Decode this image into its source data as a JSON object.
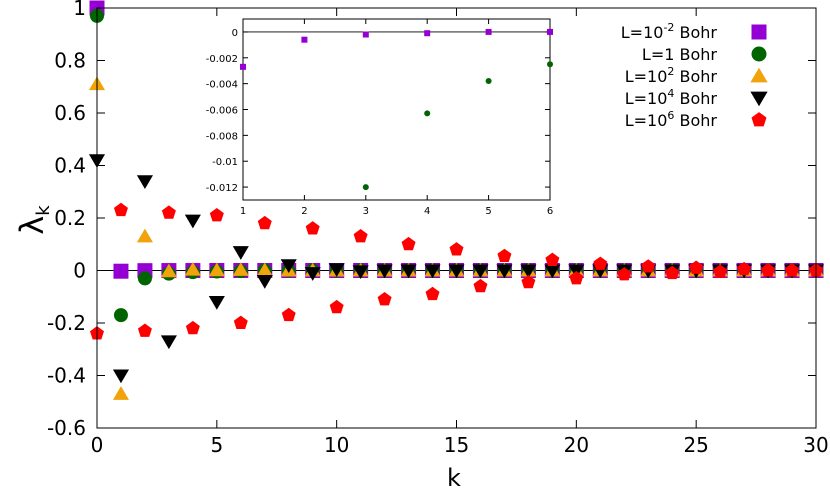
{
  "chart_data": [
    {
      "type": "scatter",
      "xlabel": "k",
      "ylabel": "λ",
      "ylabel_sub": "k",
      "xlim": [
        0,
        30
      ],
      "ylim": [
        -0.6,
        1
      ],
      "xticks": [
        0,
        5,
        10,
        15,
        20,
        25,
        30
      ],
      "yticks": [
        -0.6,
        -0.4,
        -0.2,
        0,
        0.2,
        0.4,
        0.6,
        0.8,
        1
      ],
      "ytick_labels": [
        "-0.6",
        "-0.4",
        "-0.2",
        "0",
        "0.2",
        "0.4",
        "0.6",
        "0.8",
        "1"
      ],
      "legend_position": "top-right",
      "series": [
        {
          "legend": {
            "base": "L=10",
            "exp": "-2",
            "unit": " Bohr"
          },
          "marker": "square",
          "color": "#9400d3",
          "x": [
            0,
            1,
            2,
            3,
            4,
            5,
            6,
            7,
            8,
            9,
            10,
            11,
            12,
            13,
            14,
            15,
            16,
            17,
            18,
            19,
            20,
            21,
            22,
            23,
            24,
            25,
            26,
            27,
            28,
            29,
            30
          ],
          "y": [
            1.0,
            -0.0027,
            -0.0006,
            -0.0002,
            -0.0001,
            0,
            0,
            0,
            0,
            0,
            0,
            0,
            0,
            0,
            0,
            0,
            0,
            0,
            0,
            0,
            0,
            0,
            0,
            0,
            0,
            0,
            0,
            0,
            0,
            0,
            0
          ]
        },
        {
          "legend": {
            "base": "L=1",
            "exp": "",
            "unit": " Bohr"
          },
          "marker": "circle",
          "color": "#006400",
          "x": [
            0,
            1,
            2,
            3,
            4,
            5,
            6,
            7,
            8,
            9,
            10,
            11,
            12,
            13,
            14,
            15,
            16,
            17,
            18,
            19,
            20,
            21,
            22,
            23,
            24,
            25,
            26,
            27,
            28,
            29,
            30
          ],
          "y": [
            0.97,
            -0.17,
            -0.03,
            -0.012,
            -0.0063,
            -0.0038,
            -0.0025,
            0,
            0,
            0,
            0,
            0,
            0,
            0,
            0,
            0,
            0,
            0,
            0,
            0,
            0,
            0,
            0,
            0,
            0,
            0,
            0,
            0,
            0,
            0,
            0
          ]
        },
        {
          "legend": {
            "base": "L=10",
            "exp": "2",
            "unit": " Bohr"
          },
          "marker": "triangle-up",
          "color": "#f0a30a",
          "x": [
            0,
            1,
            2,
            3,
            4,
            5,
            6,
            7,
            8,
            9,
            10,
            11,
            12,
            13,
            14,
            15,
            16,
            17,
            18,
            19,
            20,
            21,
            22,
            23,
            24,
            25,
            26,
            27,
            28,
            29,
            30
          ],
          "y": [
            0.71,
            -0.47,
            0.13,
            -0.003,
            0.003,
            0.001,
            0.002,
            0.001,
            0,
            0,
            0,
            0,
            0,
            0,
            0,
            0,
            0,
            0,
            0,
            0,
            0,
            0,
            0,
            0,
            0,
            0,
            0,
            0,
            0,
            0,
            0
          ]
        },
        {
          "legend": {
            "base": "L=10",
            "exp": "4",
            "unit": " Bohr"
          },
          "marker": "triangle-down",
          "color": "#000000",
          "x": [
            0,
            1,
            2,
            3,
            4,
            5,
            6,
            7,
            8,
            9,
            10,
            11,
            12,
            13,
            14,
            15,
            16,
            17,
            18,
            19,
            20,
            21,
            22,
            23,
            24,
            25,
            26,
            27,
            28,
            29,
            30
          ],
          "y": [
            0.42,
            -0.4,
            0.34,
            -0.27,
            0.19,
            -0.12,
            0.07,
            -0.04,
            0.02,
            -0.01,
            0.005,
            -0.003,
            0,
            0,
            0,
            0,
            0,
            0,
            0,
            0,
            0,
            0,
            0,
            0,
            0,
            0,
            0,
            0,
            0,
            0,
            0
          ]
        },
        {
          "legend": {
            "base": "L=10",
            "exp": "6",
            "unit": " Bohr"
          },
          "marker": "pentagon",
          "color": "#ff0000",
          "x": [
            0,
            1,
            2,
            3,
            4,
            5,
            6,
            7,
            8,
            9,
            10,
            11,
            12,
            13,
            14,
            15,
            16,
            17,
            18,
            19,
            20,
            21,
            22,
            23,
            24,
            25,
            26,
            27,
            28,
            29,
            30
          ],
          "y": [
            -0.24,
            0.23,
            -0.23,
            0.22,
            -0.22,
            0.21,
            -0.2,
            0.18,
            -0.17,
            0.16,
            -0.14,
            0.13,
            -0.11,
            0.1,
            -0.09,
            0.08,
            -0.06,
            0.055,
            -0.045,
            0.04,
            -0.03,
            0.025,
            -0.015,
            0.015,
            -0.01,
            0.01,
            -0.005,
            0.005,
            0,
            0,
            0
          ]
        }
      ]
    },
    {
      "type": "scatter",
      "xlim": [
        1,
        6
      ],
      "ylim": [
        -0.013,
        0.001
      ],
      "xticks": [
        1,
        2,
        3,
        4,
        5,
        6
      ],
      "yticks": [
        0,
        -0.002,
        -0.004,
        -0.006,
        -0.008,
        -0.01,
        -0.012
      ],
      "ytick_labels": [
        "0",
        "-0.002",
        "-0.004",
        "-0.006",
        "-0.008",
        "-0.01",
        "-0.012"
      ],
      "series": [
        {
          "marker": "square",
          "color": "#9400d3",
          "x": [
            1,
            2,
            3,
            4,
            5,
            6
          ],
          "y": [
            -0.0027,
            -0.0006,
            -0.0002,
            -0.0001,
            0,
            0
          ]
        },
        {
          "marker": "circle",
          "color": "#006400",
          "x": [
            3,
            4,
            5,
            6
          ],
          "y": [
            -0.012,
            -0.0063,
            -0.0038,
            -0.0025
          ]
        }
      ]
    }
  ]
}
